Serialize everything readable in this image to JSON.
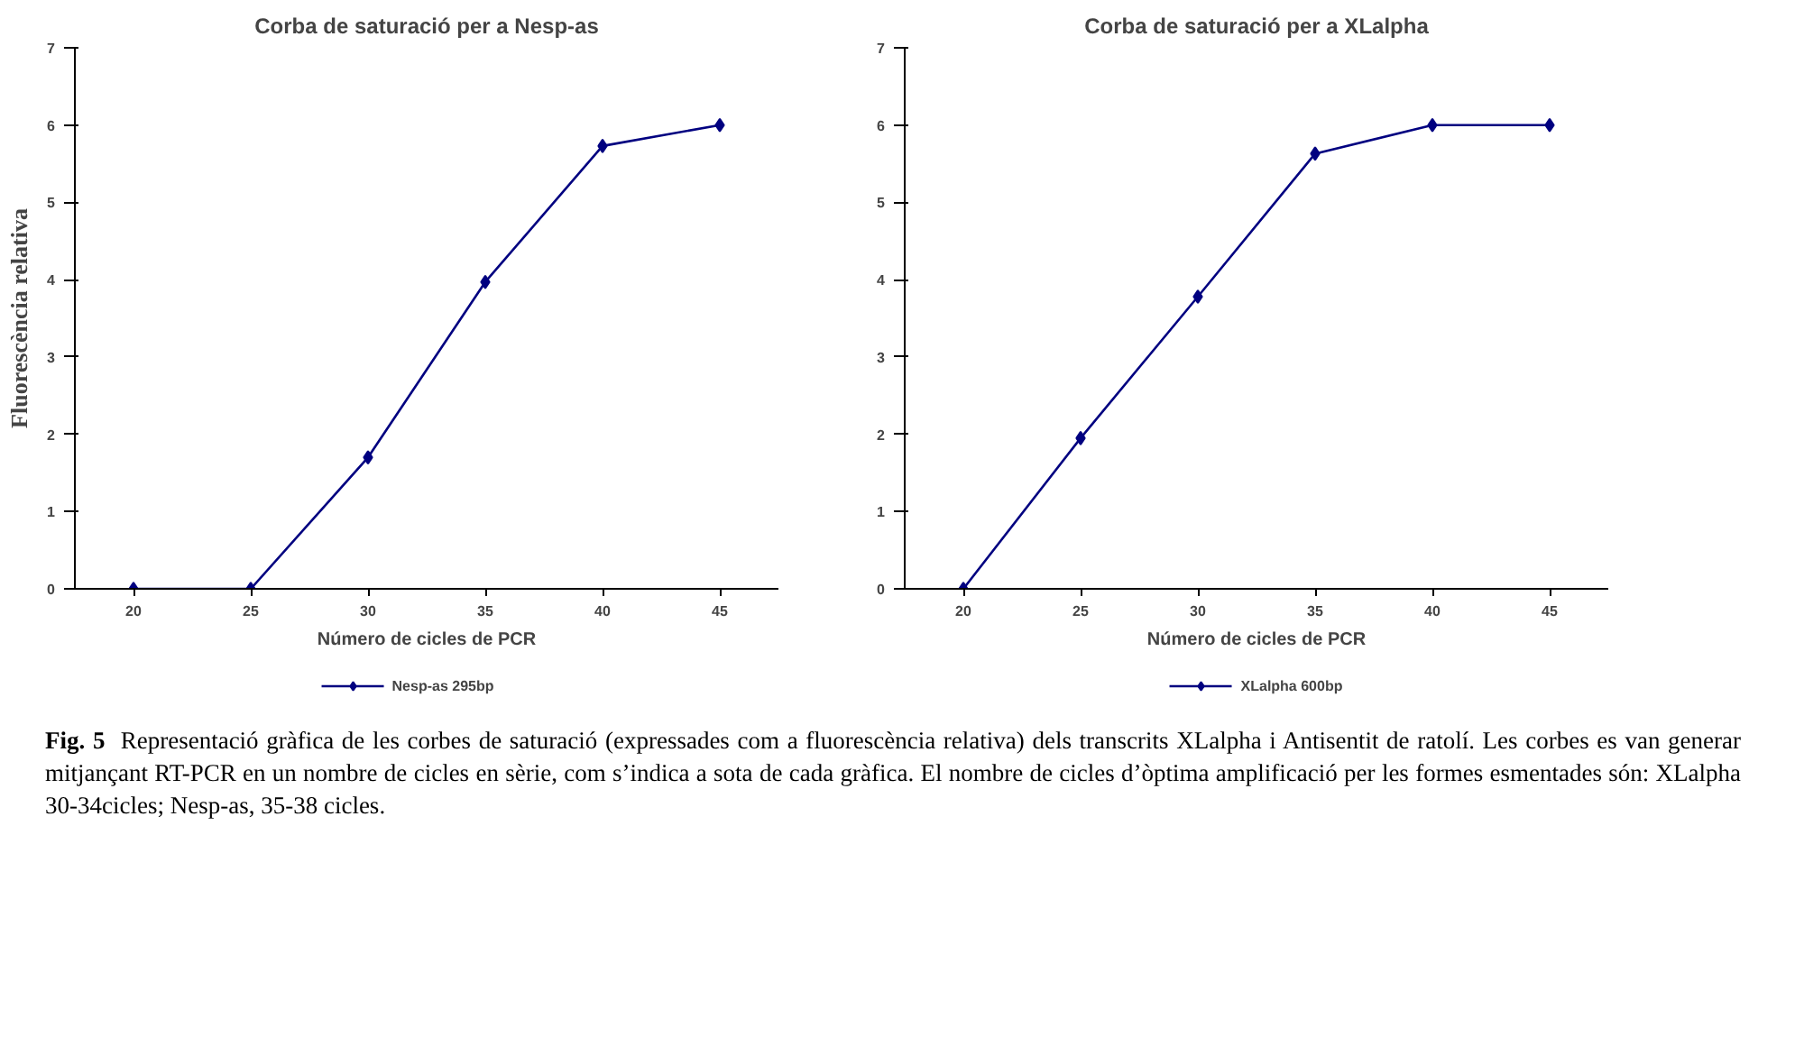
{
  "chart_data": [
    {
      "type": "line",
      "title": "Corba de saturació per a Nesp-as",
      "xlabel": "Número de cicles de PCR",
      "ylabel": "Fluorescència relativa",
      "categories": [
        "20",
        "25",
        "30",
        "35",
        "40",
        "45"
      ],
      "series": [
        {
          "name": "Nesp-as 295bp",
          "color": "#000080",
          "values": [
            0,
            0,
            1.7,
            3.97,
            5.73,
            6
          ]
        }
      ],
      "ylim": [
        0,
        7
      ],
      "yticks": [
        0,
        1,
        2,
        3,
        4,
        5,
        6,
        7
      ],
      "grid": false,
      "legend": "bottom",
      "marker": "diamond",
      "line_style": "solid"
    },
    {
      "type": "line",
      "title": "Corba de saturació per a XLalpha",
      "xlabel": "Número de cicles de PCR",
      "categories": [
        "20",
        "25",
        "30",
        "35",
        "40",
        "45"
      ],
      "series": [
        {
          "name": "XLalpha 600bp",
          "color": "#000080",
          "values": [
            0,
            1.95,
            3.78,
            5.63,
            6,
            6
          ]
        }
      ],
      "ylim": [
        0,
        7
      ],
      "yticks": [
        0,
        1,
        2,
        3,
        4,
        5,
        6,
        7
      ],
      "grid": false,
      "legend": "bottom",
      "marker": "diamond",
      "line_style": "solid",
      "annotations": [
        "Fig. 5 Representació gràfica de les corbes de saturació (expressades com a fluorescència relativa) dels transcrits XLalpha i Antisentit de ratolí. Les corbes es van generar mitjançant RT-PCR en un nombre de cicles en sèrie, com s’indica a sota de cada gràfica. El nombre de cicles d’òptima amplificació per les formes esmentades són: XLalpha 30-34cicles; Nesp-as, 35-38 cicles."
      ]
    }
  ]
}
